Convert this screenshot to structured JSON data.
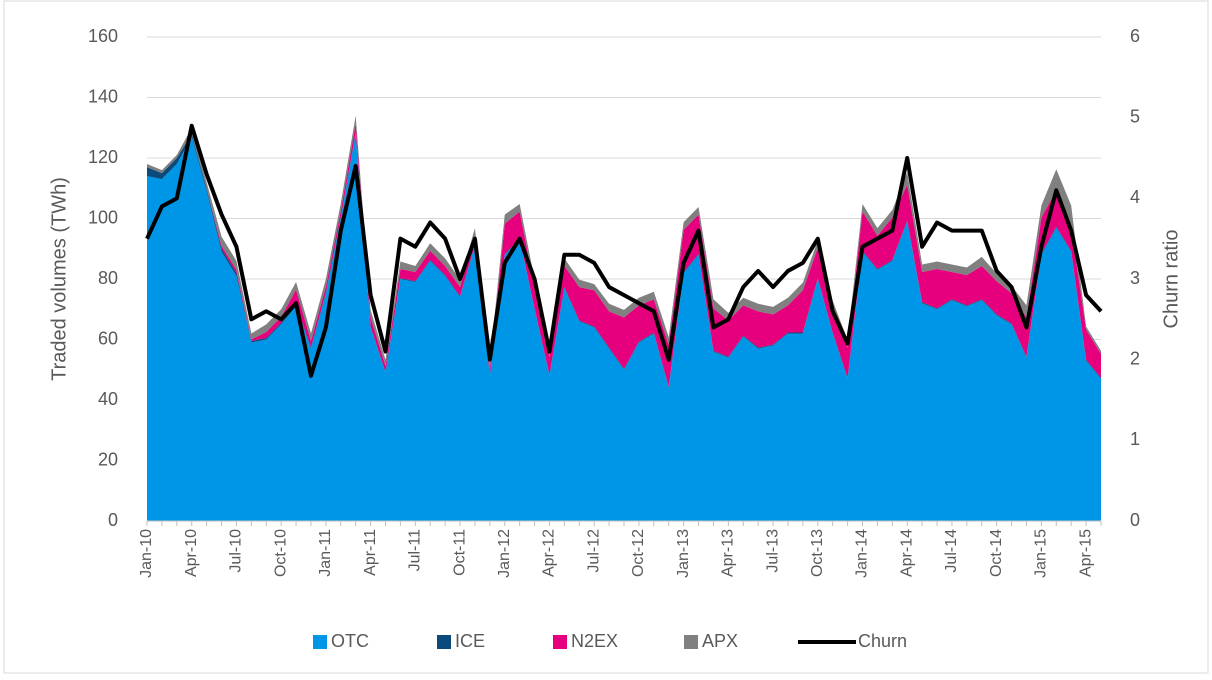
{
  "chart_data": {
    "type": "area",
    "categories": [
      "Jan-10",
      null,
      null,
      "Apr-10",
      null,
      null,
      "Jul-10",
      null,
      null,
      "Oct-10",
      null,
      null,
      "Jan-11",
      null,
      null,
      "Apr-11",
      null,
      null,
      "Jul-11",
      null,
      null,
      "Oct-11",
      null,
      null,
      "Jan-12",
      null,
      null,
      "Apr-12",
      null,
      null,
      "Jul-12",
      null,
      null,
      "Oct-12",
      null,
      null,
      "Jan-13",
      null,
      null,
      "Apr-13",
      null,
      null,
      "Jul-13",
      null,
      null,
      "Oct-13",
      null,
      null,
      "Jan-14",
      null,
      null,
      "Apr-14",
      null,
      null,
      "Jul-14",
      null,
      null,
      "Oct-14",
      null,
      null,
      "Jan-15",
      null,
      null,
      "Apr-15",
      null
    ],
    "series": [
      {
        "name": "OTC",
        "color": "#0096e8",
        "values": [
          114,
          113,
          118,
          127,
          109,
          89,
          81,
          59,
          60,
          65,
          71,
          57,
          75,
          100,
          128,
          64,
          49,
          80,
          79,
          86,
          81,
          74,
          91,
          48,
          88,
          93,
          70,
          48,
          77,
          66,
          64,
          57,
          50,
          59,
          62,
          44,
          82,
          88,
          56,
          54,
          61,
          57,
          58,
          62,
          62,
          80,
          62,
          47,
          89,
          83,
          86,
          99,
          72,
          70,
          73,
          71,
          73,
          68,
          65,
          54,
          88,
          97,
          89,
          53,
          47
        ]
      },
      {
        "name": "ICE",
        "color": "#0b4a7a",
        "values": [
          3,
          2,
          2,
          1,
          1,
          1,
          1,
          0.5,
          0.5,
          0.5,
          0.5,
          0.5,
          0.5,
          0.5,
          0.5,
          0.3,
          0.3,
          0.3,
          0.3,
          0.3,
          0.3,
          0.3,
          0.3,
          0.3,
          0.3,
          0.3,
          0.3,
          0.3,
          0.3,
          0.3,
          0.3,
          0.3,
          0.3,
          0.3,
          0.3,
          0.3,
          0.3,
          0.3,
          0.3,
          0.3,
          0.3,
          0.3,
          0.3,
          0.3,
          0.3,
          0.3,
          0.3,
          0.3,
          0.3,
          0.3,
          0.3,
          0.3,
          0.3,
          0.3,
          0.3,
          0.3,
          0.3,
          0.3,
          0.3,
          0.3,
          0.3,
          0.3,
          0.3,
          0.3,
          0.3
        ]
      },
      {
        "name": "N2EX",
        "color": "#e6007e",
        "values": [
          0,
          0,
          0,
          0,
          0,
          1,
          1,
          0.5,
          2,
          2,
          5,
          2,
          2,
          2,
          3,
          3,
          2,
          3,
          3,
          3,
          3,
          3,
          3,
          2,
          10,
          9,
          7,
          6,
          7,
          11,
          12,
          12,
          17,
          12,
          11,
          14,
          14,
          13,
          14,
          12,
          10,
          12,
          10,
          9,
          14,
          10,
          8,
          10,
          13,
          11,
          14,
          12,
          10,
          13,
          9,
          10,
          11,
          11,
          10,
          13,
          12,
          12,
          8,
          10,
          8
        ]
      },
      {
        "name": "APX",
        "color": "#808080",
        "values": [
          1,
          1,
          1,
          2,
          2,
          3,
          3,
          2,
          2.5,
          2.5,
          2.5,
          2.5,
          2.5,
          2.5,
          2.5,
          2.5,
          2,
          2.5,
          2,
          2.5,
          2.5,
          2.5,
          2.5,
          2,
          3,
          2.5,
          2.5,
          2,
          2.5,
          2.5,
          2,
          2.5,
          2.5,
          2.5,
          2.5,
          2.5,
          2.5,
          2.5,
          3,
          2.5,
          2.5,
          2.5,
          2.5,
          2.5,
          2.5,
          2.5,
          2.5,
          2.5,
          2.5,
          2.5,
          2.5,
          4,
          2.5,
          2.5,
          2.5,
          2.5,
          3,
          2.5,
          2.5,
          4,
          4,
          7,
          7,
          1,
          1
        ]
      },
      {
        "name": "Churn",
        "color": "#000000",
        "type": "line",
        "axis": "y2",
        "values": [
          3.5,
          3.9,
          4.0,
          4.9,
          4.3,
          3.8,
          3.4,
          2.5,
          2.6,
          2.5,
          2.7,
          1.8,
          2.4,
          3.6,
          4.4,
          2.8,
          2.1,
          3.5,
          3.4,
          3.7,
          3.5,
          3.0,
          3.5,
          2.0,
          3.2,
          3.5,
          3.0,
          2.1,
          3.3,
          3.3,
          3.2,
          2.9,
          2.8,
          2.7,
          2.6,
          2.0,
          3.2,
          3.6,
          2.4,
          2.5,
          2.9,
          3.1,
          2.9,
          3.1,
          3.2,
          3.5,
          2.6,
          2.2,
          3.4,
          3.5,
          3.6,
          4.5,
          3.4,
          3.7,
          3.6,
          3.6,
          3.6,
          3.1,
          2.9,
          2.4,
          3.4,
          4.1,
          3.6,
          2.8,
          2.6
        ]
      }
    ],
    "y_label": "Traded volumes (TWh)",
    "y2_label": "Churn ratio",
    "ylim": [
      0,
      160
    ],
    "yticks": [
      0,
      20,
      40,
      60,
      80,
      100,
      120,
      140,
      160
    ],
    "y2lim": [
      0,
      6
    ],
    "y2ticks": [
      0,
      1,
      2,
      3,
      4,
      5,
      6
    ],
    "grid": true,
    "legend": "bottom"
  }
}
